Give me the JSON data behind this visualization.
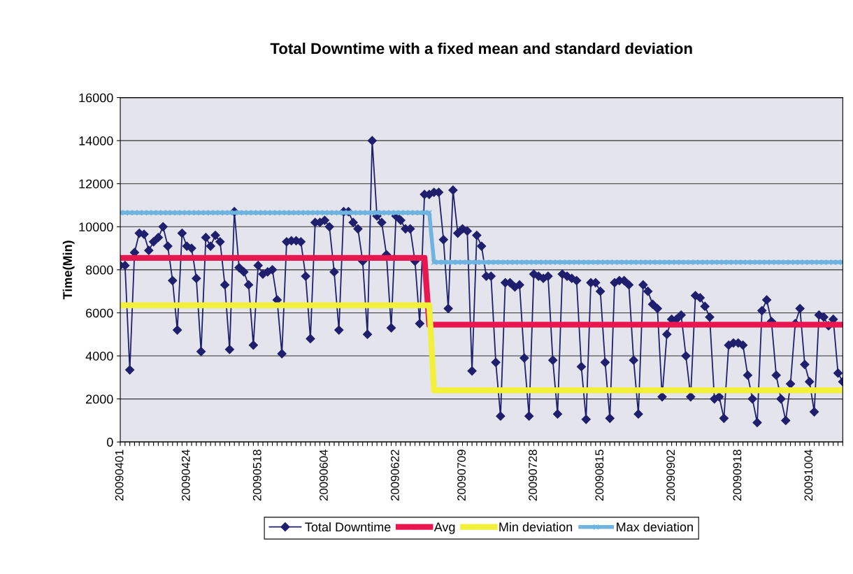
{
  "chart_data": {
    "type": "line",
    "title": "Total Downtime with a fixed mean and standard deviation",
    "ylabel": "Time(Min)",
    "categories": [
      "20090401",
      null,
      null,
      null,
      null,
      null,
      null,
      null,
      null,
      null,
      null,
      null,
      null,
      null,
      "20090424",
      null,
      null,
      null,
      null,
      null,
      null,
      null,
      null,
      null,
      null,
      null,
      null,
      null,
      null,
      "20090518",
      null,
      null,
      null,
      null,
      null,
      null,
      null,
      null,
      null,
      null,
      null,
      null,
      null,
      "20090604",
      null,
      null,
      null,
      null,
      null,
      null,
      null,
      null,
      null,
      null,
      null,
      null,
      null,
      null,
      "20090622",
      null,
      null,
      null,
      null,
      null,
      null,
      null,
      null,
      null,
      null,
      null,
      null,
      null,
      "20090709",
      null,
      null,
      null,
      null,
      null,
      null,
      null,
      null,
      null,
      null,
      null,
      null,
      null,
      null,
      "20090728",
      null,
      null,
      null,
      null,
      null,
      null,
      null,
      null,
      null,
      null,
      null,
      null,
      null,
      "20090815",
      null,
      null,
      null,
      null,
      null,
      null,
      null,
      null,
      null,
      null,
      null,
      null,
      null,
      null,
      "20090902",
      null,
      null,
      null,
      null,
      null,
      null,
      null,
      null,
      null,
      null,
      null,
      null,
      null,
      "20090918",
      null,
      null,
      null,
      null,
      null,
      null,
      null,
      null,
      null,
      null,
      null,
      null,
      null,
      null,
      "20091004",
      null,
      null,
      null,
      null,
      null,
      null,
      null
    ],
    "series": [
      {
        "name": "Total Downtime",
        "color": "#1f1f6e",
        "marker": "diamond",
        "values": [
          8200,
          8200,
          3350,
          8800,
          9700,
          9650,
          8900,
          9300,
          9500,
          10000,
          9100,
          7500,
          5200,
          9700,
          9100,
          9000,
          7600,
          4200,
          9500,
          9100,
          9600,
          9300,
          7300,
          4300,
          10700,
          8100,
          7900,
          7300,
          4500,
          8200,
          7800,
          7900,
          8000,
          6600,
          4100,
          9300,
          9350,
          9350,
          9300,
          7700,
          4800,
          10200,
          10200,
          10300,
          10000,
          7900,
          5200,
          10700,
          10700,
          10200,
          9900,
          8400,
          5000,
          14000,
          10500,
          10200,
          8700,
          5300,
          10500,
          10300,
          9900,
          9900,
          8400,
          5500,
          11500,
          11500,
          11600,
          11600,
          9400,
          6200,
          11700,
          9700,
          9900,
          9800,
          3300,
          9600,
          9100,
          7700,
          7700,
          3700,
          1200,
          7400,
          7400,
          7200,
          7300,
          3900,
          1200,
          7800,
          7700,
          7600,
          7700,
          3800,
          1300,
          7800,
          7700,
          7600,
          7500,
          3500,
          1050,
          7400,
          7400,
          7000,
          3700,
          1100,
          7400,
          7500,
          7500,
          7300,
          3800,
          1300,
          7300,
          7000,
          6400,
          6200,
          2100,
          5000,
          5700,
          5700,
          5900,
          4000,
          2100,
          6800,
          6700,
          6300,
          5800,
          2000,
          2100,
          1100,
          4500,
          4600,
          4600,
          4500,
          3100,
          2000,
          900,
          6100,
          6600,
          5600,
          3100,
          2000,
          1000,
          2700,
          5500,
          6200,
          3600,
          2800,
          1400,
          5900,
          5800,
          5400,
          5700,
          3200,
          2800
        ]
      },
      {
        "name": "Avg",
        "color": "#e8174f",
        "marker": "square",
        "values": [
          8550,
          8550,
          8550,
          8550,
          8550,
          8550,
          8550,
          8550,
          8550,
          8550,
          8550,
          8550,
          8550,
          8550,
          8550,
          8550,
          8550,
          8550,
          8550,
          8550,
          8550,
          8550,
          8550,
          8550,
          8550,
          8550,
          8550,
          8550,
          8550,
          8550,
          8550,
          8550,
          8550,
          8550,
          8550,
          8550,
          8550,
          8550,
          8550,
          8550,
          8550,
          8550,
          8550,
          8550,
          8550,
          8550,
          8550,
          8550,
          8550,
          8550,
          8550,
          8550,
          8550,
          8550,
          8550,
          8550,
          8550,
          8550,
          8550,
          8550,
          8550,
          8550,
          8550,
          8550,
          8550,
          5450,
          5450,
          5450,
          5450,
          5450,
          5450,
          5450,
          5450,
          5450,
          5450,
          5450,
          5450,
          5450,
          5450,
          5450,
          5450,
          5450,
          5450,
          5450,
          5450,
          5450,
          5450,
          5450,
          5450,
          5450,
          5450,
          5450,
          5450,
          5450,
          5450,
          5450,
          5450,
          5450,
          5450,
          5450,
          5450,
          5450,
          5450,
          5450,
          5450,
          5450,
          5450,
          5450,
          5450,
          5450,
          5450,
          5450,
          5450,
          5450,
          5450,
          5450,
          5450,
          5450,
          5450,
          5450,
          5450,
          5450,
          5450,
          5450,
          5450,
          5450,
          5450,
          5450,
          5450,
          5450,
          5450,
          5450,
          5450,
          5450,
          5450,
          5450,
          5450,
          5450,
          5450,
          5450,
          5450,
          5450,
          5450,
          5450,
          5450,
          5450,
          5450,
          5450,
          5450,
          5450,
          5450,
          5450,
          5450
        ]
      },
      {
        "name": "Min deviation",
        "color": "#f2f03a",
        "marker": "triangle",
        "values": [
          6350,
          6350,
          6350,
          6350,
          6350,
          6350,
          6350,
          6350,
          6350,
          6350,
          6350,
          6350,
          6350,
          6350,
          6350,
          6350,
          6350,
          6350,
          6350,
          6350,
          6350,
          6350,
          6350,
          6350,
          6350,
          6350,
          6350,
          6350,
          6350,
          6350,
          6350,
          6350,
          6350,
          6350,
          6350,
          6350,
          6350,
          6350,
          6350,
          6350,
          6350,
          6350,
          6350,
          6350,
          6350,
          6350,
          6350,
          6350,
          6350,
          6350,
          6350,
          6350,
          6350,
          6350,
          6350,
          6350,
          6350,
          6350,
          6350,
          6350,
          6350,
          6350,
          6350,
          6350,
          6350,
          6350,
          2400,
          2400,
          2400,
          2400,
          2400,
          2400,
          2400,
          2400,
          2400,
          2400,
          2400,
          2400,
          2400,
          2400,
          2400,
          2400,
          2400,
          2400,
          2400,
          2400,
          2400,
          2400,
          2400,
          2400,
          2400,
          2400,
          2400,
          2400,
          2400,
          2400,
          2400,
          2400,
          2400,
          2400,
          2400,
          2400,
          2400,
          2400,
          2400,
          2400,
          2400,
          2400,
          2400,
          2400,
          2400,
          2400,
          2400,
          2400,
          2400,
          2400,
          2400,
          2400,
          2400,
          2400,
          2400,
          2400,
          2400,
          2400,
          2400,
          2400,
          2400,
          2400,
          2400,
          2400,
          2400,
          2400,
          2400,
          2400,
          2400,
          2400,
          2400,
          2400,
          2400,
          2400,
          2400,
          2400,
          2400,
          2400,
          2400,
          2400,
          2400,
          2400,
          2400,
          2400,
          2400,
          2400,
          2400
        ]
      },
      {
        "name": "Max deviation",
        "color": "#6fb4e0",
        "marker": "cross",
        "values": [
          10650,
          10650,
          10650,
          10650,
          10650,
          10650,
          10650,
          10650,
          10650,
          10650,
          10650,
          10650,
          10650,
          10650,
          10650,
          10650,
          10650,
          10650,
          10650,
          10650,
          10650,
          10650,
          10650,
          10650,
          10650,
          10650,
          10650,
          10650,
          10650,
          10650,
          10650,
          10650,
          10650,
          10650,
          10650,
          10650,
          10650,
          10650,
          10650,
          10650,
          10650,
          10650,
          10650,
          10650,
          10650,
          10650,
          10650,
          10650,
          10650,
          10650,
          10650,
          10650,
          10650,
          10650,
          10650,
          10650,
          10650,
          10650,
          10650,
          10650,
          10650,
          10650,
          10650,
          10650,
          10650,
          10650,
          8350,
          8350,
          8350,
          8350,
          8350,
          8350,
          8350,
          8350,
          8350,
          8350,
          8350,
          8350,
          8350,
          8350,
          8350,
          8350,
          8350,
          8350,
          8350,
          8350,
          8350,
          8350,
          8350,
          8350,
          8350,
          8350,
          8350,
          8350,
          8350,
          8350,
          8350,
          8350,
          8350,
          8350,
          8350,
          8350,
          8350,
          8350,
          8350,
          8350,
          8350,
          8350,
          8350,
          8350,
          8350,
          8350,
          8350,
          8350,
          8350,
          8350,
          8350,
          8350,
          8350,
          8350,
          8350,
          8350,
          8350,
          8350,
          8350,
          8350,
          8350,
          8350,
          8350,
          8350,
          8350,
          8350,
          8350,
          8350,
          8350,
          8350,
          8350,
          8350,
          8350,
          8350,
          8350,
          8350,
          8350,
          8350,
          8350,
          8350,
          8350,
          8350,
          8350,
          8350,
          8350,
          8350,
          8350
        ]
      }
    ],
    "ylim": [
      0,
      16000
    ],
    "yticks": [
      0,
      2000,
      4000,
      6000,
      8000,
      10000,
      12000,
      14000,
      16000
    ],
    "grid": "y",
    "legend": "bottom"
  }
}
